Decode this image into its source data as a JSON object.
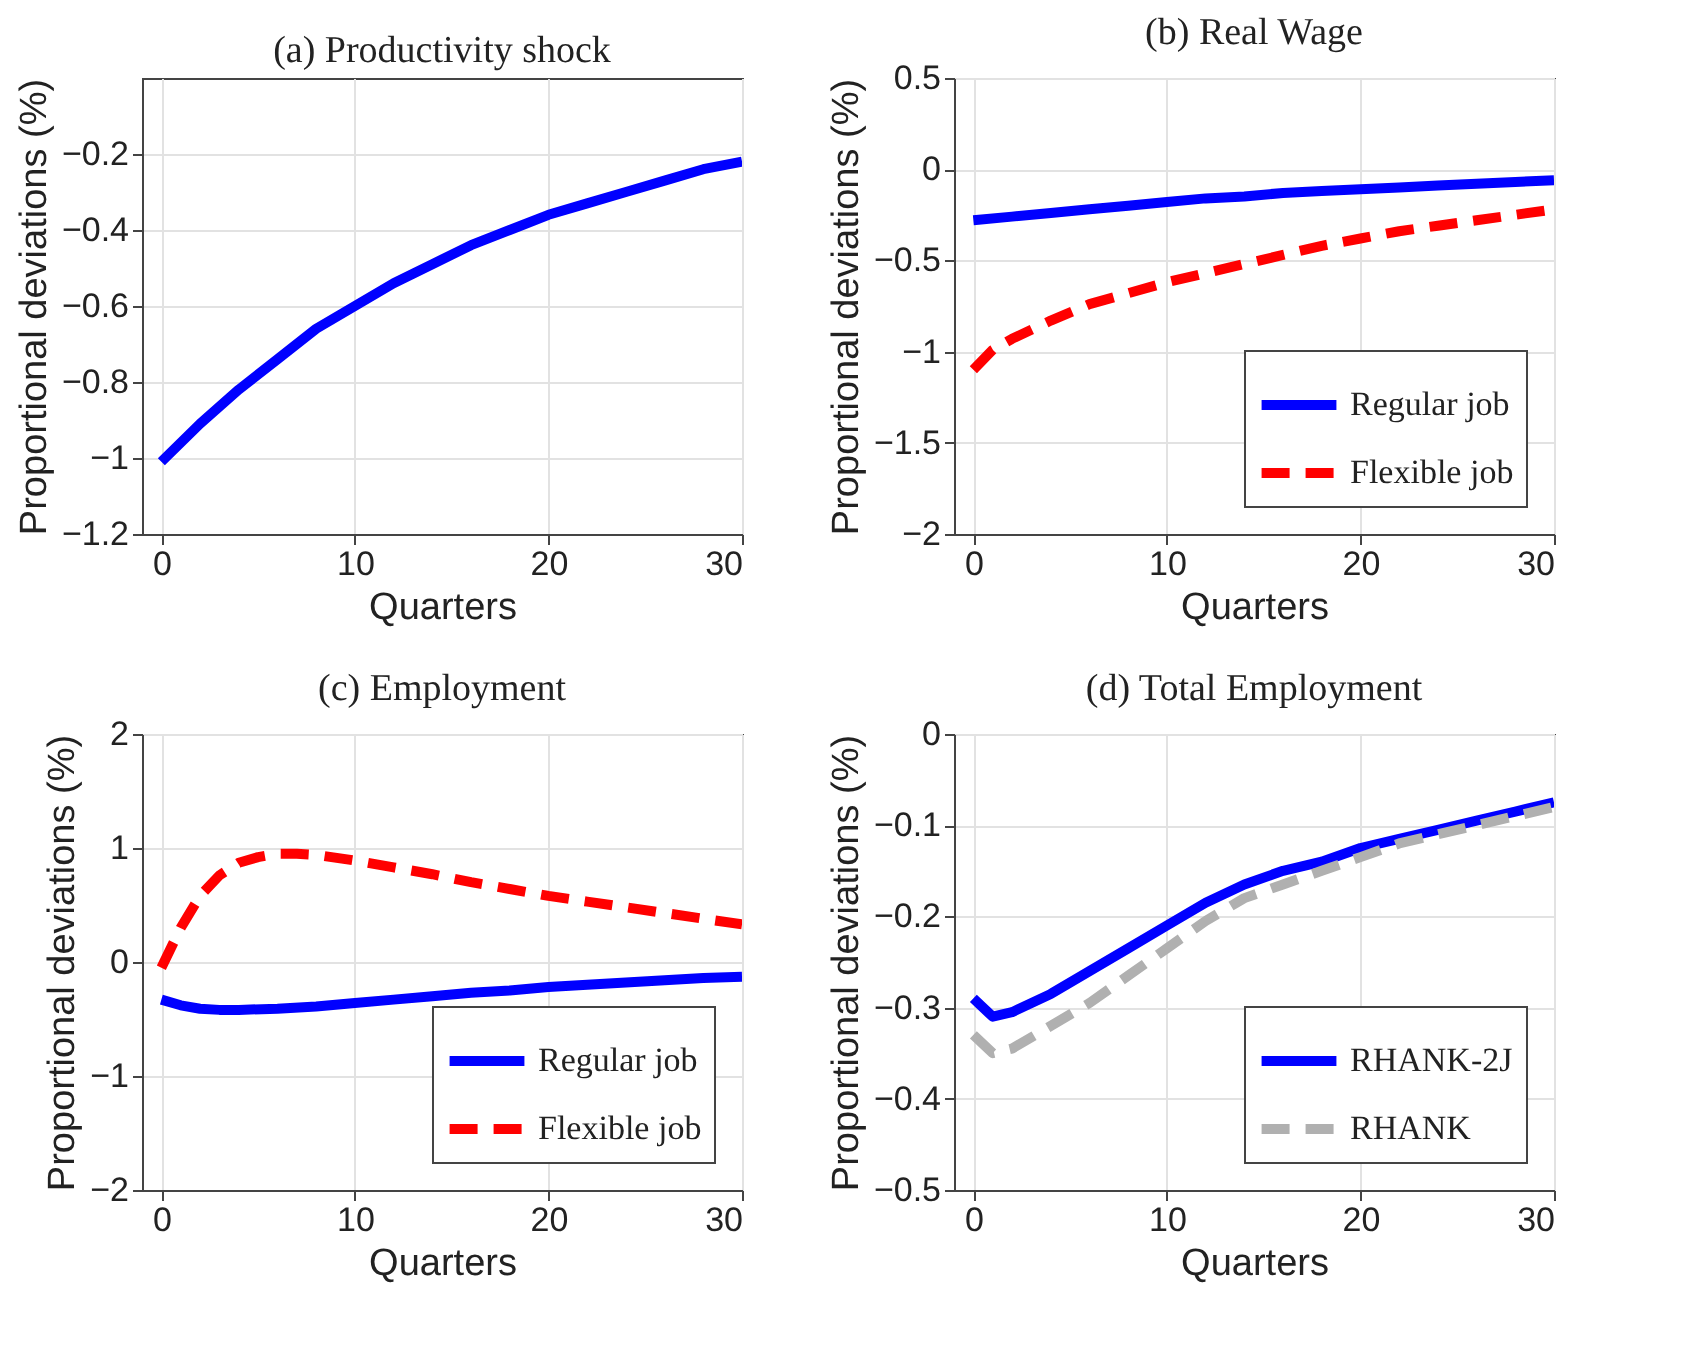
{
  "chart_data": [
    {
      "type": "line",
      "title": "(a) Productivity shock",
      "xlabel": "Quarters",
      "ylabel": "Proportional deviations (%)",
      "xlim": [
        -1,
        30
      ],
      "xticks": [
        0,
        10,
        20,
        30
      ],
      "ylim": [
        -1.2,
        0
      ],
      "yticks": [
        -1.2,
        -1,
        -0.8,
        -0.6,
        -0.4,
        -0.2
      ],
      "grid": true,
      "x": [
        0,
        2,
        4,
        6,
        8,
        10,
        12,
        14,
        16,
        18,
        20,
        22,
        24,
        26,
        28,
        30
      ],
      "series": [
        {
          "color": "#0000ff",
          "line_style": "solid",
          "values": [
            -1.01,
            -0.91,
            -0.82,
            -0.74,
            -0.66,
            -0.6,
            -0.54,
            -0.49,
            -0.44,
            -0.4,
            -0.36,
            -0.33,
            -0.3,
            -0.27,
            -0.24,
            -0.22
          ]
        }
      ]
    },
    {
      "type": "line",
      "title": "(b) Real Wage",
      "xlabel": "Quarters",
      "ylabel": "Proportional deviations (%)",
      "xlim": [
        -1,
        30
      ],
      "xticks": [
        0,
        10,
        20,
        30
      ],
      "ylim": [
        -2,
        0.5
      ],
      "yticks": [
        -2,
        -1.5,
        -1,
        -0.5,
        0,
        0.5
      ],
      "grid": true,
      "legend": "bottom right",
      "series": [
        {
          "name": "Regular job",
          "color": "#0000ff",
          "line_style": "solid",
          "x": [
            0,
            2,
            4,
            6,
            8,
            10,
            12,
            14,
            16,
            18,
            20,
            22,
            24,
            26,
            28,
            30
          ],
          "values": [
            -0.28,
            -0.26,
            -0.24,
            -0.22,
            -0.2,
            -0.18,
            -0.16,
            -0.15,
            -0.13,
            -0.12,
            -0.11,
            -0.1,
            -0.09,
            -0.08,
            -0.07,
            -0.06
          ]
        },
        {
          "name": "Flexible job",
          "color": "#ff0000",
          "line_style": "dashed",
          "x": [
            0,
            1,
            2,
            4,
            6,
            8,
            10,
            12,
            14,
            16,
            18,
            20,
            22,
            24,
            26,
            28,
            30
          ],
          "values": [
            -1.1,
            -0.99,
            -0.93,
            -0.83,
            -0.74,
            -0.68,
            -0.62,
            -0.57,
            -0.52,
            -0.47,
            -0.42,
            -0.38,
            -0.34,
            -0.31,
            -0.28,
            -0.25,
            -0.22
          ]
        }
      ]
    },
    {
      "type": "line",
      "title": "(c) Employment",
      "xlabel": "Quarters",
      "ylabel": "Proportional deviations (%)",
      "xlim": [
        -1,
        30
      ],
      "xticks": [
        0,
        10,
        20,
        30
      ],
      "ylim": [
        -2,
        2
      ],
      "yticks": [
        -2,
        -1,
        0,
        1,
        2
      ],
      "grid": true,
      "legend": "bottom right",
      "series": [
        {
          "name": "Regular job",
          "color": "#0000ff",
          "line_style": "solid",
          "x": [
            0,
            1,
            2,
            3,
            4,
            6,
            8,
            10,
            12,
            14,
            16,
            18,
            20,
            22,
            24,
            26,
            28,
            30
          ],
          "values": [
            -0.33,
            -0.38,
            -0.41,
            -0.42,
            -0.42,
            -0.41,
            -0.39,
            -0.36,
            -0.33,
            -0.3,
            -0.27,
            -0.25,
            -0.22,
            -0.2,
            -0.18,
            -0.16,
            -0.14,
            -0.13
          ]
        },
        {
          "name": "Flexible job",
          "color": "#ff0000",
          "line_style": "dashed",
          "x": [
            0,
            1,
            2,
            3,
            4,
            5,
            6,
            7,
            8,
            10,
            12,
            14,
            16,
            18,
            20,
            22,
            24,
            26,
            28,
            30
          ],
          "values": [
            -0.05,
            0.3,
            0.58,
            0.76,
            0.87,
            0.92,
            0.95,
            0.95,
            0.94,
            0.89,
            0.83,
            0.77,
            0.7,
            0.64,
            0.58,
            0.53,
            0.48,
            0.43,
            0.38,
            0.33
          ]
        }
      ]
    },
    {
      "type": "line",
      "title": "(d) Total Employment",
      "xlabel": "Quarters",
      "ylabel": "Proportional deviations (%)",
      "xlim": [
        -1,
        30
      ],
      "xticks": [
        0,
        10,
        20,
        30
      ],
      "ylim": [
        -0.5,
        0
      ],
      "yticks": [
        -0.5,
        -0.4,
        -0.3,
        -0.2,
        -0.1,
        0
      ],
      "grid": true,
      "legend": "bottom right",
      "x": [
        0,
        1,
        2,
        4,
        6,
        8,
        10,
        12,
        14,
        16,
        18,
        20,
        22,
        24,
        26,
        28,
        30
      ],
      "series": [
        {
          "name": "RHANK-2J",
          "color": "#0000ff",
          "line_style": "solid",
          "values": [
            -0.29,
            -0.31,
            -0.305,
            -0.285,
            -0.26,
            -0.235,
            -0.21,
            -0.185,
            -0.165,
            -0.15,
            -0.14,
            -0.125,
            -0.115,
            -0.105,
            -0.095,
            -0.085,
            -0.075
          ]
        },
        {
          "name": "RHANK",
          "color": "#b0b0b0",
          "line_style": "dashed",
          "values": [
            -0.33,
            -0.35,
            -0.345,
            -0.32,
            -0.295,
            -0.265,
            -0.235,
            -0.205,
            -0.18,
            -0.165,
            -0.15,
            -0.135,
            -0.12,
            -0.11,
            -0.1,
            -0.09,
            -0.08
          ]
        }
      ]
    }
  ]
}
